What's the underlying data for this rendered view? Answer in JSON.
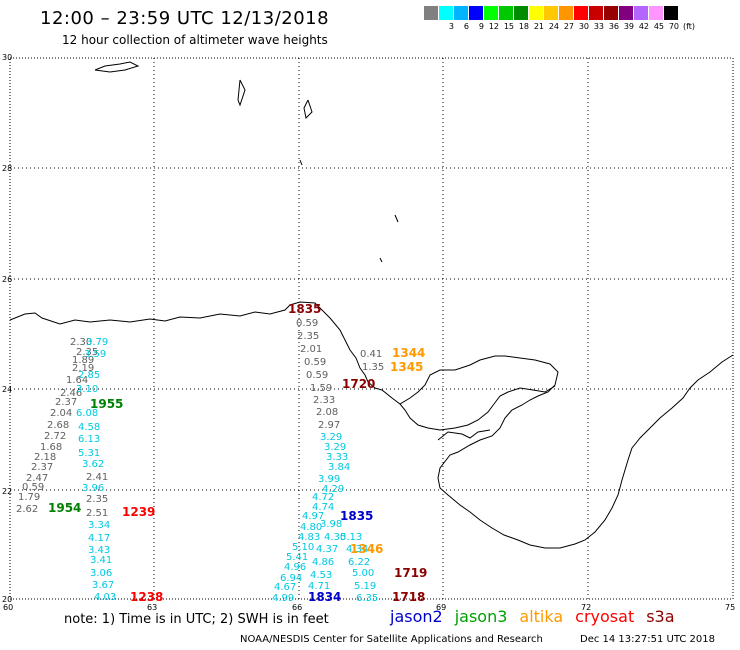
{
  "header": {
    "title": "12:00 – 23:59 UTC 12/13/2018",
    "subtitle": "12 hour collection of altimeter wave heights"
  },
  "colorbar": {
    "unit": "(ft)",
    "levels": [
      {
        "label": "",
        "color": "#808080"
      },
      {
        "label": "3",
        "color": "#00ffff"
      },
      {
        "label": "6",
        "color": "#00b4ff"
      },
      {
        "label": "9",
        "color": "#0000ff"
      },
      {
        "label": "12",
        "color": "#00ff00"
      },
      {
        "label": "15",
        "color": "#00c800"
      },
      {
        "label": "18",
        "color": "#008c00"
      },
      {
        "label": "21",
        "color": "#ffff00"
      },
      {
        "label": "24",
        "color": "#ffc800"
      },
      {
        "label": "27",
        "color": "#ff9600"
      },
      {
        "label": "30",
        "color": "#ff0000"
      },
      {
        "label": "33",
        "color": "#c80000"
      },
      {
        "label": "36",
        "color": "#960000"
      },
      {
        "label": "39",
        "color": "#800080"
      },
      {
        "label": "42",
        "color": "#b464ff"
      },
      {
        "label": "45",
        "color": "#ff96ff"
      },
      {
        "label": "70",
        "color": "#000000"
      }
    ]
  },
  "map": {
    "lat_labels": [
      "30",
      "28",
      "26",
      "24",
      "22",
      "20"
    ],
    "lon_labels": [
      "60",
      "63",
      "66",
      "69",
      "72",
      "75"
    ],
    "coast_color": "#000000",
    "grid_color": "#000000"
  },
  "passes": [
    {
      "name": "jason3",
      "time": "1955",
      "color": "#008000"
    },
    {
      "name": "jason3",
      "time": "1954",
      "color": "#008000"
    },
    {
      "name": "cryosat",
      "time": "1239",
      "color": "#ff0000"
    },
    {
      "name": "cryosat",
      "time": "1238",
      "color": "#ff0000"
    },
    {
      "name": "s3a",
      "time": "1720",
      "color": "#8b0000"
    },
    {
      "name": "s3a",
      "time": "1719",
      "color": "#8b0000"
    },
    {
      "name": "s3a",
      "time": "1718",
      "color": "#8b0000"
    },
    {
      "name": "jason2",
      "time": "1835",
      "color": "#0000cc"
    },
    {
      "name": "jason2",
      "time": "1834",
      "color": "#0000cc"
    },
    {
      "name": "altika",
      "time": "1344",
      "color": "#ff9900"
    },
    {
      "name": "altika",
      "time": "1345",
      "color": "#ff9900"
    },
    {
      "name": "altika",
      "time": "1346",
      "color": "#ff9900"
    },
    {
      "name": "cryosat",
      "time": "1835",
      "color": "#8b0000"
    }
  ],
  "swh_left_gray": [
    "2.30",
    "2.35",
    "1.89",
    "2.19",
    "1.64",
    "2.46",
    "2.37",
    "2.04",
    "2.68",
    "2.72",
    "1.68",
    "2.18",
    "2.37",
    "2.47",
    "0.59",
    "1.79",
    "2.62",
    "2.35",
    "2.51",
    "2.41"
  ],
  "swh_left_cyan": [
    "3.79",
    "3.59",
    "2.85",
    "3.10",
    "6.08",
    "4.58",
    "6.13",
    "5.31",
    "3.62",
    "3.96",
    "3.34",
    "4.17",
    "3.43",
    "3.41",
    "3.06",
    "3.67",
    "4.03"
  ],
  "swh_mid_gray": [
    "0.59",
    "2.35",
    "2.01",
    "0.59",
    "0.59",
    "1.59",
    "2.33",
    "2.08",
    "2.97",
    "0.41",
    "1.35"
  ],
  "swh_mid_cyan": [
    "3.29",
    "3.29",
    "3.33",
    "3.84",
    "3.99",
    "4.29",
    "4.72",
    "4.74",
    "4.97",
    "4.80",
    "4.83",
    "5.10",
    "5.41",
    "4.96",
    "6.94",
    "4.67",
    "4.99",
    "3.98",
    "4.30",
    "4.37",
    "4.86",
    "4.53",
    "4.71",
    "5.13",
    "4.34",
    "6.22",
    "5.00",
    "5.19",
    "6.35"
  ],
  "footer": {
    "note": "note: 1) Time is in UTC; 2) SWH is in feet",
    "legend": [
      {
        "label": "jason2",
        "color": "#0000cc"
      },
      {
        "label": "jason3",
        "color": "#00a000"
      },
      {
        "label": "altika",
        "color": "#ff9900"
      },
      {
        "label": "cryosat",
        "color": "#ff0000"
      },
      {
        "label": "s3a",
        "color": "#8b0000"
      }
    ],
    "credit": "NOAA/NESDIS Center for Satellite Applications and Research",
    "timestamp": "Dec 14 13:27:51 UTC 2018"
  }
}
